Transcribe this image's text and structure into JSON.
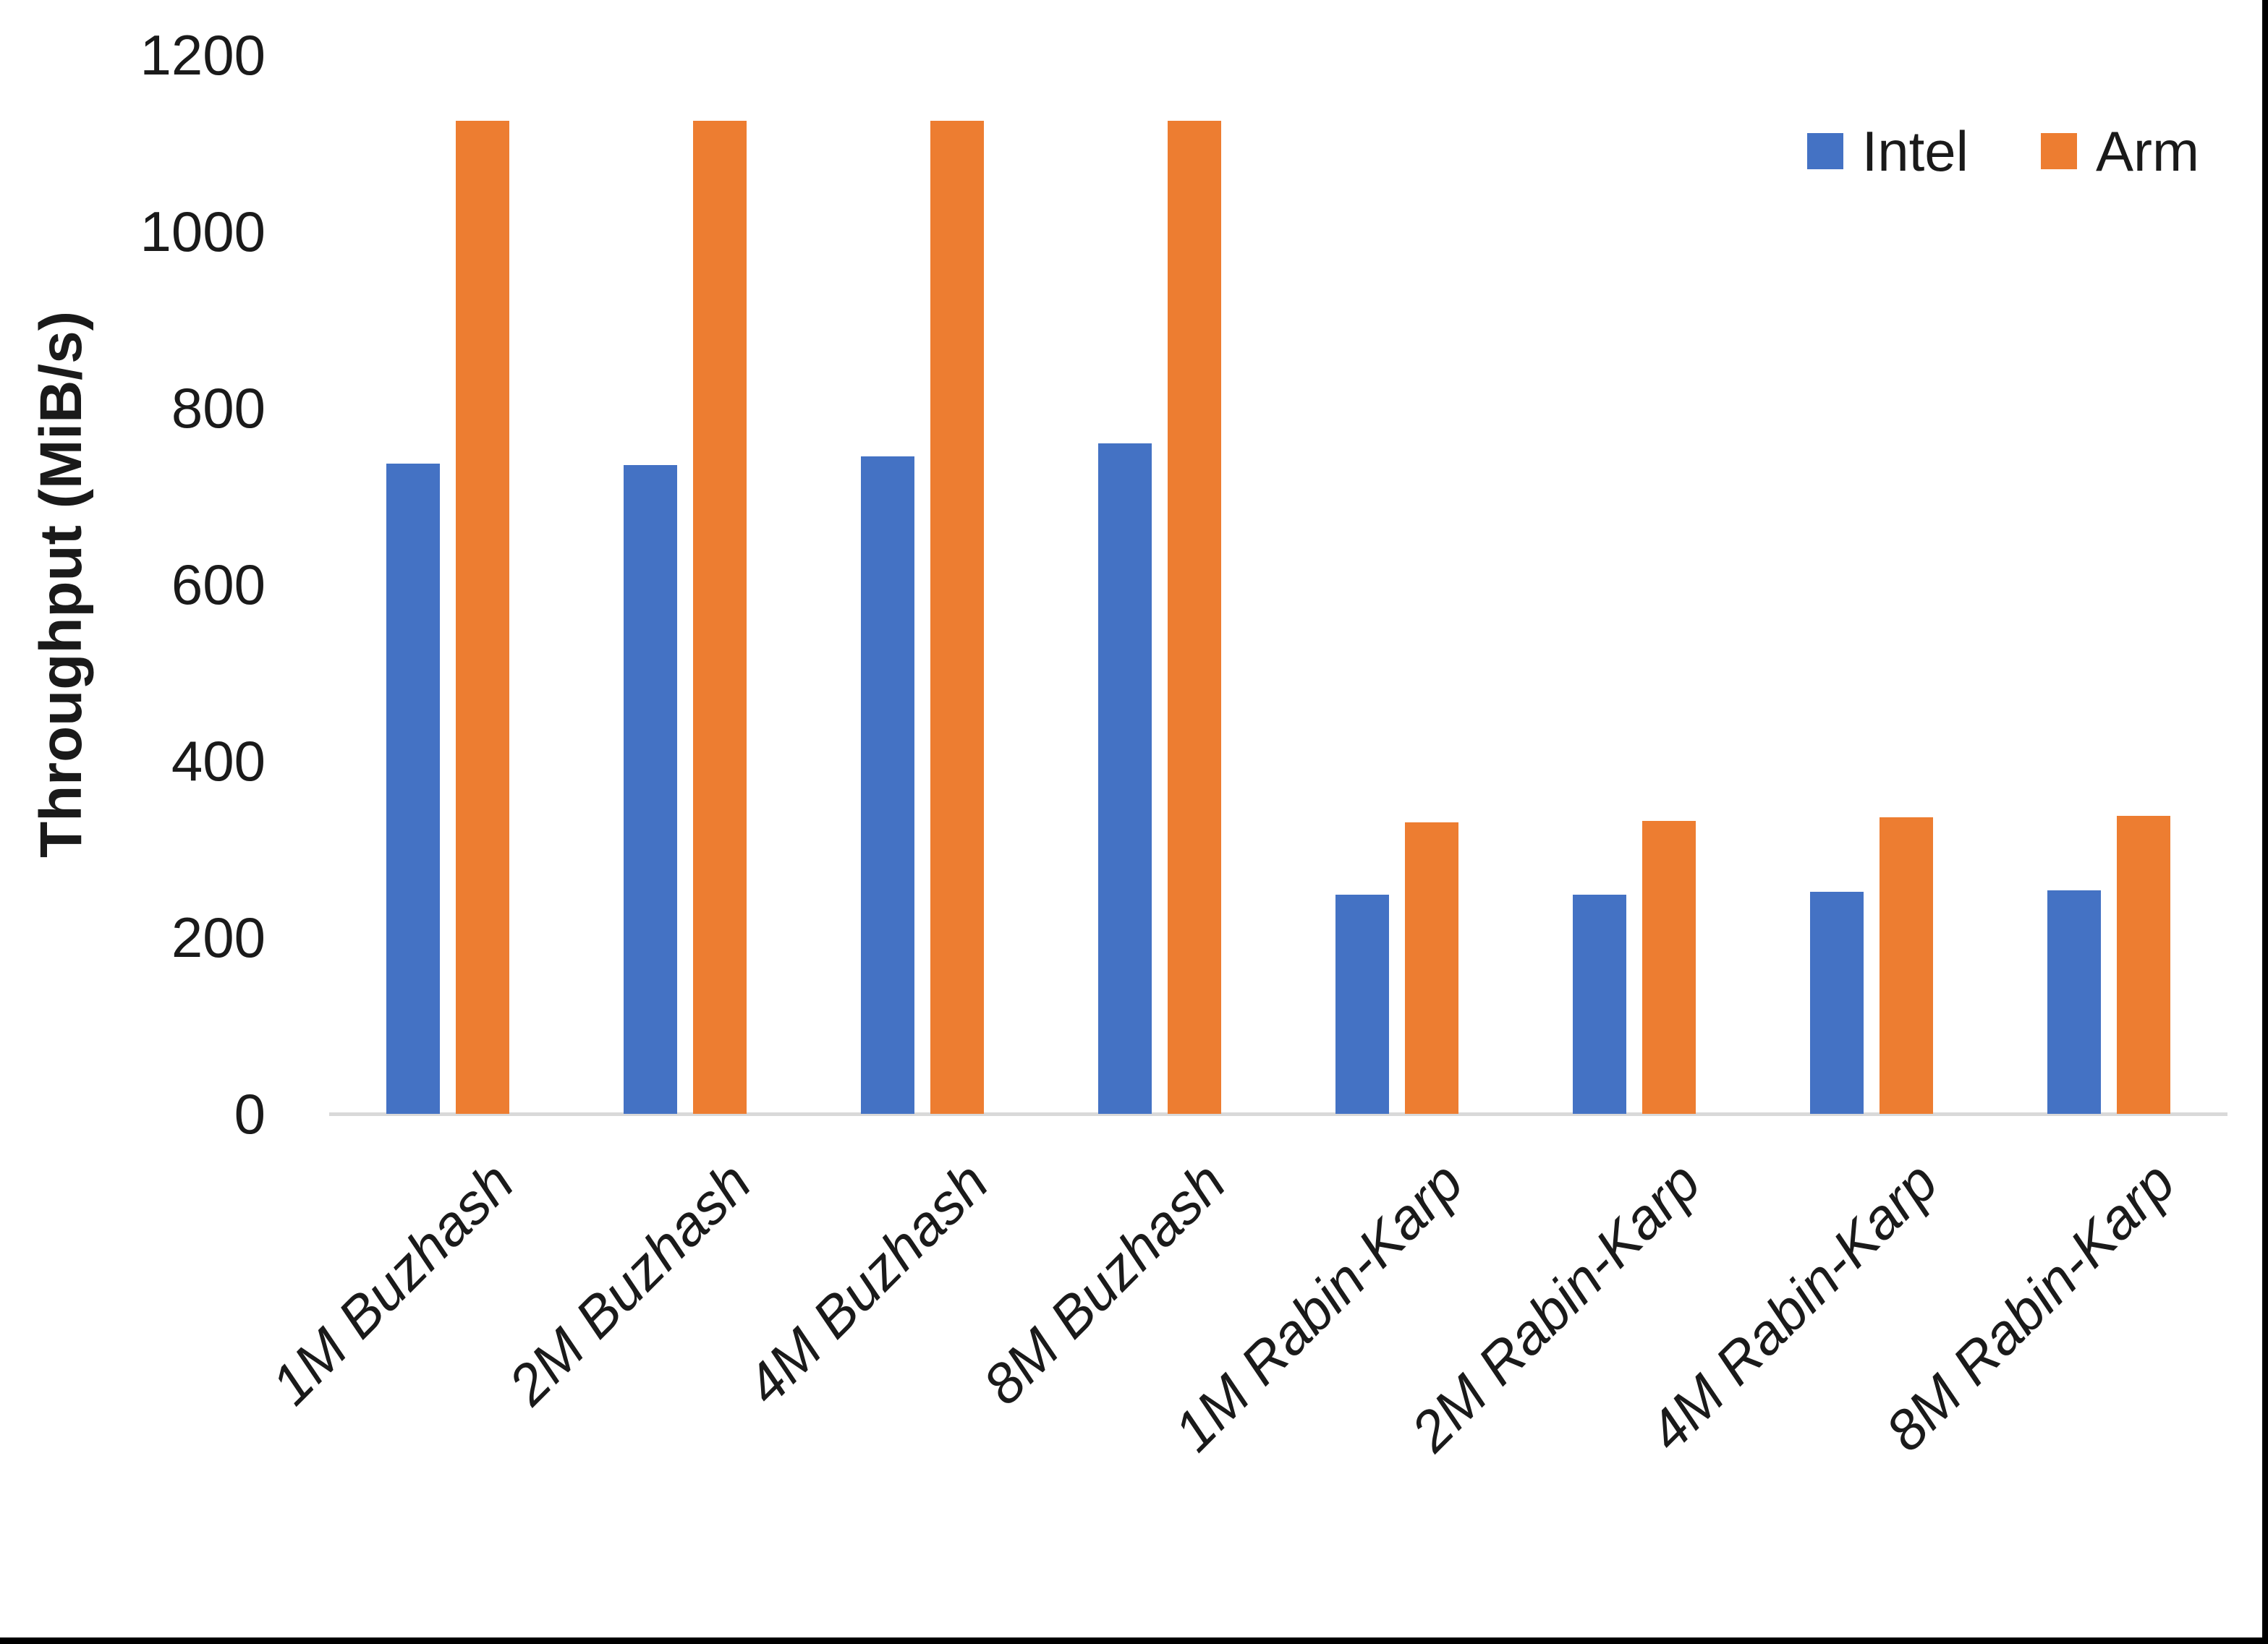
{
  "chart_data": {
    "type": "bar",
    "title": "",
    "xlabel": "",
    "ylabel": "Throughput (MiB/s)",
    "ylim": [
      0,
      1200
    ],
    "yticks": [
      0,
      200,
      400,
      600,
      800,
      1000,
      1200
    ],
    "grid": false,
    "legend_position": "top-right",
    "categories": [
      "1M Buzhash",
      "2M Buzhash",
      "4M Buzhash",
      "8M Buzhash",
      "1M Rabin-Karp",
      "2M Rabin-Karp",
      "4M Rabin-Karp",
      "8M Rabin-Karp"
    ],
    "series": [
      {
        "name": "Intel",
        "color": "#4472C4",
        "values": [
          737,
          735,
          745,
          760,
          248,
          248,
          252,
          253
        ]
      },
      {
        "name": "Arm",
        "color": "#ED7D31",
        "values": [
          1125,
          1125,
          1125,
          1125,
          330,
          332,
          336,
          338
        ]
      }
    ],
    "axis_line_color": "#D9D9D9",
    "text_color": "#1A1A1A"
  }
}
